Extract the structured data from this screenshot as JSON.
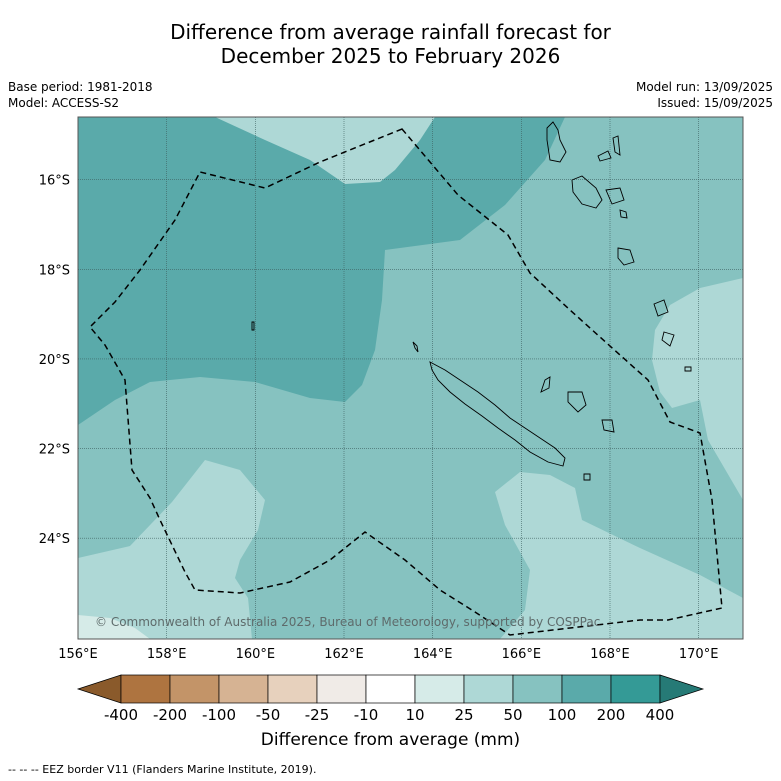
{
  "title_line1": "Difference from average rainfall forecast for",
  "title_line2": "December 2025 to February 2026",
  "base_period": "Base period: 1981-2018",
  "model": "Model: ACCESS-S2",
  "model_run": "Model run: 13/09/2025",
  "issued": "Issued: 15/09/2025",
  "map": {
    "lon_range": [
      156,
      171
    ],
    "lat_range": [
      -26.25,
      -14.6
    ],
    "lat_ticks": [
      {
        "value": -16,
        "label": "16°S"
      },
      {
        "value": -18,
        "label": "18°S"
      },
      {
        "value": -20,
        "label": "20°S"
      },
      {
        "value": -22,
        "label": "22°S"
      },
      {
        "value": -24,
        "label": "24°S"
      }
    ],
    "lon_ticks": [
      {
        "value": 156,
        "label": "156°E"
      },
      {
        "value": 158,
        "label": "158°E"
      },
      {
        "value": 160,
        "label": "160°E"
      },
      {
        "value": 162,
        "label": "162°E"
      },
      {
        "value": 164,
        "label": "164°E"
      },
      {
        "value": 166,
        "label": "166°E"
      },
      {
        "value": 168,
        "label": "168°E"
      },
      {
        "value": 170,
        "label": "170°E"
      }
    ],
    "copyright": "© Commonwealth of Australia 2025, Bureau of Meteorology, supported by COSPPac",
    "colors": {
      "mm_10_25": "#d6ebe8",
      "mm_25_50": "#aed8d6",
      "mm_50_100": "#86c2c0",
      "mm_100_200": "#5aaaaa"
    }
  },
  "colorbar": {
    "labels": [
      "-400",
      "-200",
      "-100",
      "-50",
      "-25",
      "-10",
      "10",
      "25",
      "50",
      "100",
      "200",
      "400"
    ],
    "colors": [
      "#8a5a2b",
      "#ae7440",
      "#c39468",
      "#d6b393",
      "#e7d1bd",
      "#f0ebe7",
      "#ffffff",
      "#d6ebe8",
      "#aed8d6",
      "#86c2c0",
      "#5aaaaa",
      "#349a96",
      "#267a76"
    ],
    "title": "Difference from average (mm)"
  },
  "footnote": "--  --  -- EEZ border V11 (Flanders Marine Institute, 2019)."
}
